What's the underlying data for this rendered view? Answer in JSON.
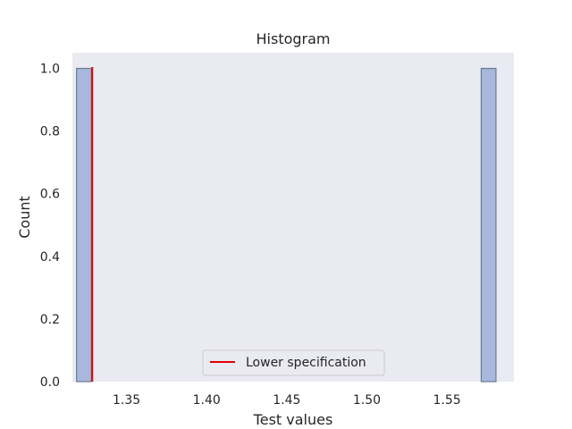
{
  "chart_data": {
    "type": "bar",
    "title": "Histogram",
    "xlabel": "Test values",
    "ylabel": "Count",
    "xlim": [
      1.3162,
      1.5918
    ],
    "ylim": [
      0,
      1.05
    ],
    "xticks": [
      1.35,
      1.4,
      1.45,
      1.5,
      1.55
    ],
    "xtick_labels": [
      "1.35",
      "1.40",
      "1.45",
      "1.50",
      "1.55"
    ],
    "yticks": [
      0.0,
      0.2,
      0.4,
      0.6,
      0.8,
      1.0
    ],
    "ytick_labels": [
      "0.0",
      "0.2",
      "0.4",
      "0.6",
      "0.8",
      "1.0"
    ],
    "bins": [
      {
        "x0": 1.3188,
        "x1": 1.3281,
        "count": 1
      },
      {
        "x0": 1.5714,
        "x1": 1.5806,
        "count": 1
      }
    ],
    "bin_color": "#a7b8dc",
    "bin_edge_color": "#6b7a92",
    "background_color": "#eaeaf2",
    "grid": false,
    "reference_lines": [
      {
        "name": "Lower specification",
        "x": 1.3286,
        "color": "#e00000"
      }
    ],
    "legend": {
      "position": "lower-center",
      "entries": [
        "Lower specification"
      ]
    }
  }
}
